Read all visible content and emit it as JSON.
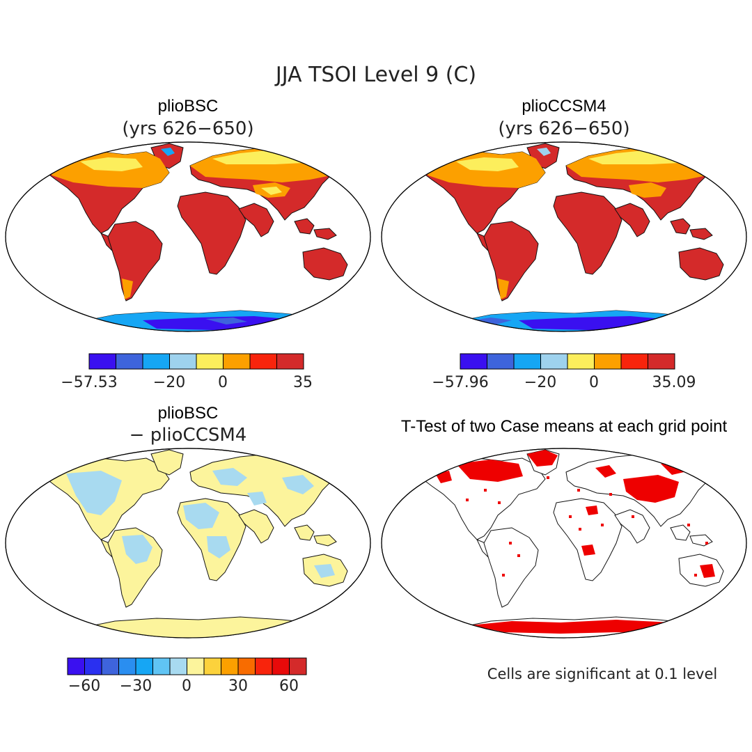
{
  "figure": {
    "main_title": "JJA TSOI Level 9 (C)",
    "note": "Cells are significant at 0.1 level"
  },
  "panels": [
    {
      "id": "plioBSC",
      "title": "plioBSC",
      "subtitle": "(yrs 626−650)",
      "colorbar": {
        "colors": [
          "#3a10f0",
          "#3e64dc",
          "#16a6f4",
          "#9ed2ee",
          "#fcee5c",
          "#fca000",
          "#f8240c",
          "#d42a2a"
        ],
        "tick_labels": [
          "−57.53",
          "−20",
          "0",
          "35"
        ]
      }
    },
    {
      "id": "plioCCSM4",
      "title": "plioCCSM4",
      "subtitle": "(yrs 626−650)",
      "colorbar": {
        "colors": [
          "#3a10f0",
          "#3e64dc",
          "#16a6f4",
          "#9ed2ee",
          "#fcee5c",
          "#fca000",
          "#f8240c",
          "#d42a2a"
        ],
        "tick_labels": [
          "−57.96",
          "−20",
          "0",
          "35.09"
        ]
      }
    },
    {
      "id": "difference",
      "title": "plioBSC",
      "subtitle": "− plioCCSM4",
      "colorbar": {
        "colors": [
          "#3a10f0",
          "#2a30f0",
          "#3e64dc",
          "#2a8ef0",
          "#16a6f4",
          "#60c4f4",
          "#a8daf0",
          "#fcf49c",
          "#fcd23c",
          "#fca000",
          "#f86c00",
          "#f8240c",
          "#e80a0a",
          "#d42a2a"
        ],
        "tick_labels": [
          "−60",
          "−30",
          "0",
          "30",
          "60"
        ]
      }
    },
    {
      "id": "ttest",
      "title": "T-Test of two Case means at each grid point"
    }
  ]
}
